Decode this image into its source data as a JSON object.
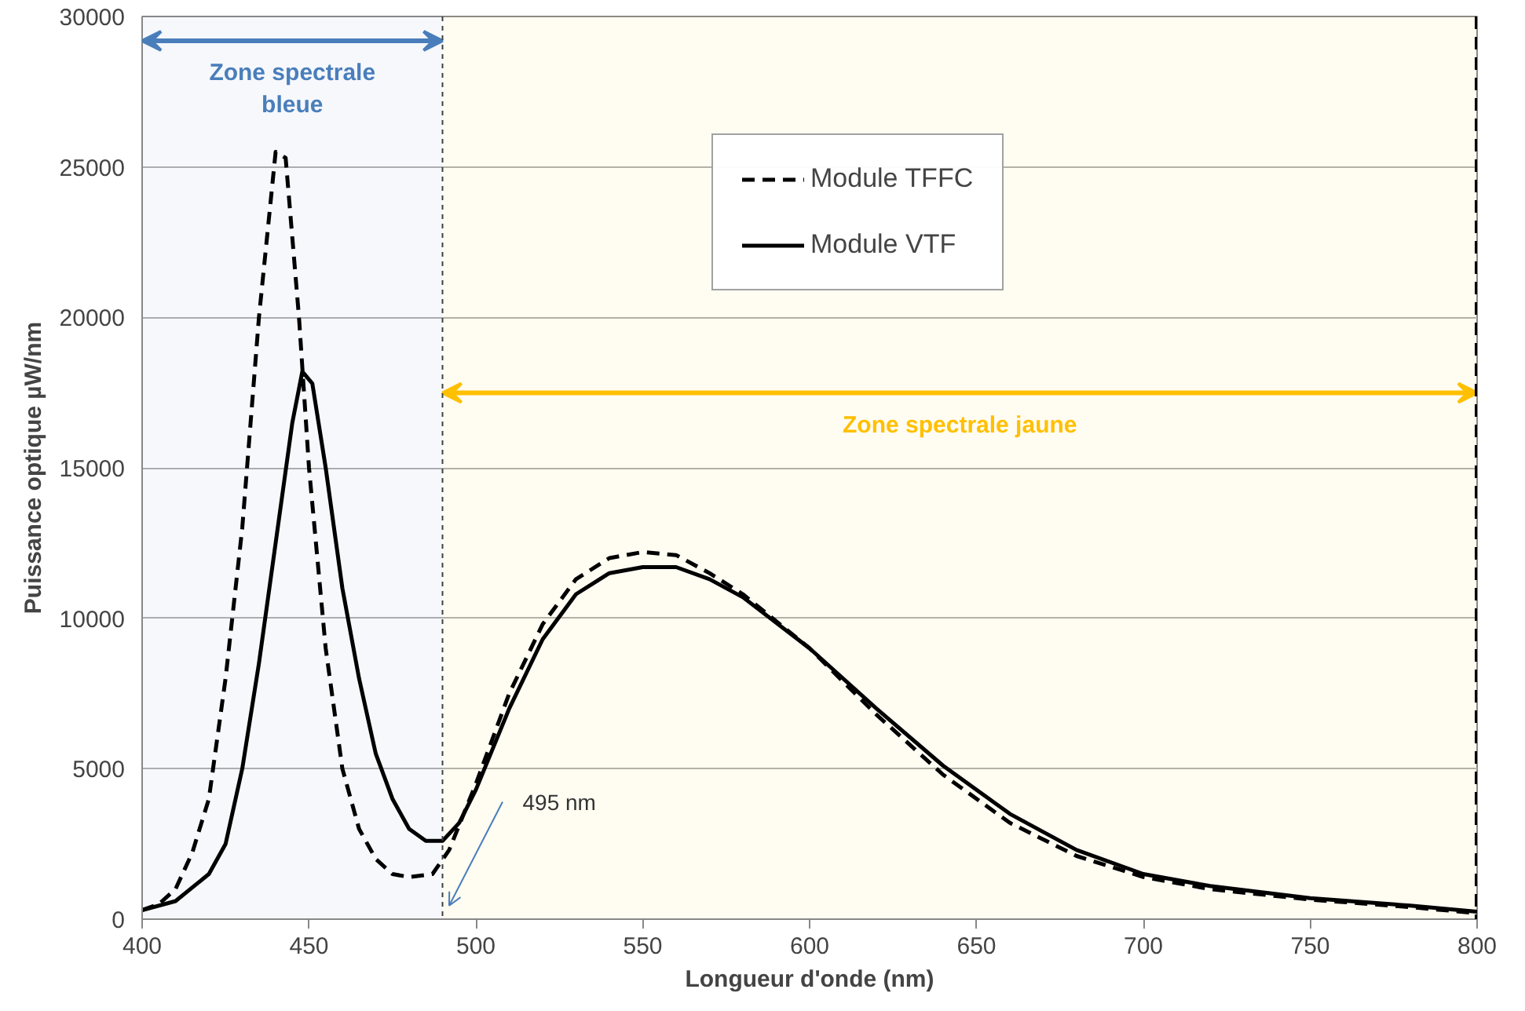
{
  "chart_data": {
    "type": "line",
    "xlabel": "Longueur d'onde (nm)",
    "ylabel": "Puissance optique µW/nm",
    "xlim": [
      400,
      800
    ],
    "ylim": [
      0,
      30000
    ],
    "xticks": [
      400,
      450,
      500,
      550,
      600,
      650,
      700,
      750,
      800
    ],
    "yticks": [
      0,
      5000,
      10000,
      15000,
      20000,
      25000,
      30000
    ],
    "grid": "y",
    "legend": "top right",
    "series": [
      {
        "name": "Module TFFC",
        "color": "#000000",
        "line_style": "dashed",
        "x": [
          400,
          405,
          410,
          415,
          420,
          425,
          430,
          435,
          440,
          443,
          447,
          450,
          455,
          460,
          465,
          470,
          475,
          480,
          487,
          492,
          500,
          510,
          520,
          530,
          540,
          550,
          560,
          570,
          580,
          600,
          620,
          640,
          660,
          680,
          700,
          720,
          750,
          780,
          800
        ],
        "values": [
          300,
          500,
          1000,
          2200,
          4000,
          8000,
          13000,
          20000,
          25500,
          25300,
          20000,
          15000,
          9000,
          5000,
          3000,
          2000,
          1500,
          1400,
          1500,
          2300,
          4500,
          7500,
          9800,
          11300,
          12000,
          12200,
          12100,
          11500,
          10800,
          9000,
          6800,
          4800,
          3200,
          2100,
          1400,
          1000,
          650,
          400,
          200
        ]
      },
      {
        "name": "Module VTF",
        "color": "#000000",
        "line_style": "solid",
        "x": [
          400,
          410,
          420,
          425,
          430,
          435,
          440,
          445,
          448,
          451,
          455,
          460,
          465,
          470,
          475,
          480,
          485,
          490,
          495,
          500,
          510,
          520,
          530,
          540,
          550,
          560,
          570,
          580,
          600,
          620,
          640,
          660,
          680,
          700,
          720,
          750,
          780,
          800
        ],
        "values": [
          300,
          600,
          1500,
          2500,
          5000,
          8500,
          12500,
          16500,
          18200,
          17800,
          15000,
          11000,
          8000,
          5500,
          4000,
          3000,
          2600,
          2600,
          3200,
          4300,
          7000,
          9300,
          10800,
          11500,
          11700,
          11700,
          11300,
          10700,
          9000,
          7000,
          5100,
          3500,
          2300,
          1500,
          1100,
          700,
          450,
          250
        ]
      }
    ],
    "ref_lines": [
      {
        "axis": "x",
        "value": 490,
        "label": "495 nm",
        "color": "#404040",
        "line_style": "dotted"
      },
      {
        "axis": "x",
        "value": 800,
        "label": null,
        "color": "#000000",
        "line_style": "dashed"
      }
    ],
    "bands": [
      {
        "axis": "x",
        "from": 400,
        "to": 490,
        "label": "Zone spectrale\nbleue",
        "color": "#4a7ebb"
      },
      {
        "axis": "x",
        "from": 490,
        "to": 800,
        "label": "Zone spectrale jaune",
        "color": "#ffc000"
      }
    ]
  }
}
